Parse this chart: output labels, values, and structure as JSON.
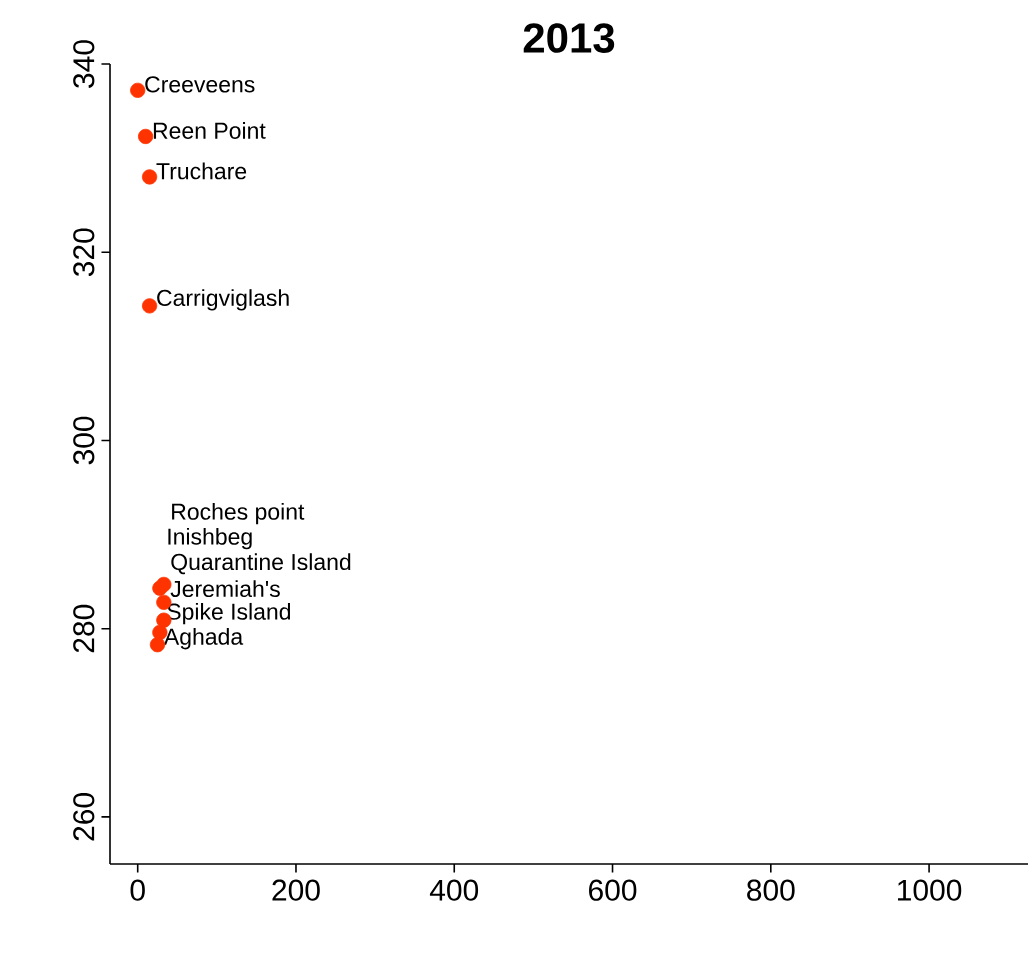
{
  "chart_data": {
    "type": "scatter",
    "title": "2013",
    "x": [
      0,
      10,
      15,
      15,
      28,
      33,
      33,
      33,
      28,
      25
    ],
    "values": [
      337.2,
      332.3,
      328,
      314.3,
      284.3,
      284.7,
      282.8,
      280.9,
      279.6,
      278.3
    ],
    "color": "#ff3300",
    "marker": "circle",
    "xlim": [
      -35,
      1125
    ],
    "ylim": [
      255,
      340
    ],
    "xticks": [
      0,
      200,
      400,
      600,
      800,
      1000
    ],
    "yticks": [
      260,
      280,
      300,
      320,
      340
    ],
    "annotations": [
      {
        "text": "Creeveens",
        "x": 0,
        "y": 337.2
      },
      {
        "text": "Reen Point",
        "x": 10,
        "y": 332.3
      },
      {
        "text": "Truchare",
        "x": 15,
        "y": 328
      },
      {
        "text": "Carrigviglash",
        "x": 15,
        "y": 314.3
      },
      {
        "text": "Inishbeg",
        "x": 28,
        "y": 284.3
      },
      {
        "text": "Roches point",
        "x": 33,
        "y": 284.7
      },
      {
        "text": "Quarantine Island",
        "x": 33,
        "y": 282.8
      },
      {
        "text": "Jeremiah's",
        "x": 33,
        "y": 280.9
      },
      {
        "text": "Spike Island",
        "x": 28,
        "y": 279.6
      },
      {
        "text": "Aghada",
        "x": 25,
        "y": 278.3
      }
    ]
  }
}
